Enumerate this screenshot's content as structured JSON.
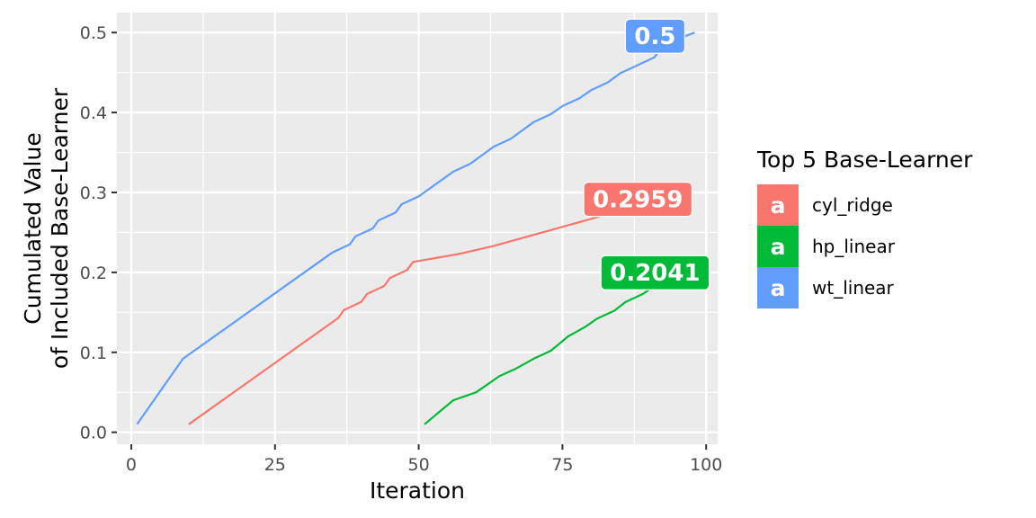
{
  "chart_data": {
    "type": "line",
    "xlabel": "Iteration",
    "ylabel_lines": [
      "Cumulated Value",
      "of Included Base-Learner"
    ],
    "xlim": [
      -2.5,
      102
    ],
    "ylim": [
      -0.015,
      0.525
    ],
    "x_ticks": [
      0,
      25,
      50,
      75,
      100
    ],
    "x_tick_labels": [
      "0",
      "25",
      "50",
      "75",
      "100"
    ],
    "y_ticks": [
      0.0,
      0.1,
      0.2,
      0.3,
      0.4,
      0.5
    ],
    "y_tick_labels": [
      "0.0",
      "0.1",
      "0.2",
      "0.3",
      "0.4",
      "0.5"
    ],
    "grid": true,
    "legend": {
      "title": "Top 5 Base-Learner",
      "position": "right",
      "key_text": "a",
      "items": [
        "cyl_ridge",
        "hp_linear",
        "wt_linear"
      ]
    },
    "series": [
      {
        "name": "cyl_ridge",
        "color": "#F8766D",
        "end_label": "0.2959",
        "points": [
          [
            10,
            0.01
          ],
          [
            36,
            0.143
          ],
          [
            37,
            0.153
          ],
          [
            40,
            0.163
          ],
          [
            41,
            0.173
          ],
          [
            44,
            0.183
          ],
          [
            45,
            0.193
          ],
          [
            48,
            0.203
          ],
          [
            49,
            0.213
          ],
          [
            57,
            0.223
          ],
          [
            63,
            0.233
          ],
          [
            68,
            0.243
          ],
          [
            73,
            0.253
          ],
          [
            78,
            0.263
          ],
          [
            83,
            0.273
          ],
          [
            88,
            0.283
          ],
          [
            95,
            0.2959
          ]
        ]
      },
      {
        "name": "hp_linear",
        "color": "#00BA38",
        "end_label": "0.2041",
        "points": [
          [
            51,
            0.01
          ],
          [
            56,
            0.04
          ],
          [
            60,
            0.05
          ],
          [
            64,
            0.07
          ],
          [
            67,
            0.08
          ],
          [
            70,
            0.092
          ],
          [
            73,
            0.102
          ],
          [
            76,
            0.12
          ],
          [
            79,
            0.132
          ],
          [
            81,
            0.142
          ],
          [
            84,
            0.152
          ],
          [
            86,
            0.163
          ],
          [
            89,
            0.173
          ],
          [
            91,
            0.183
          ],
          [
            95,
            0.193
          ],
          [
            98,
            0.2041
          ]
        ]
      },
      {
        "name": "wt_linear",
        "color": "#619CFF",
        "end_label": "0.5",
        "points": [
          [
            1,
            0.01
          ],
          [
            9,
            0.092
          ],
          [
            35,
            0.225
          ],
          [
            38,
            0.235
          ],
          [
            39,
            0.245
          ],
          [
            42,
            0.255
          ],
          [
            43,
            0.265
          ],
          [
            46,
            0.275
          ],
          [
            47,
            0.285
          ],
          [
            50,
            0.295
          ],
          [
            56,
            0.326
          ],
          [
            59,
            0.336
          ],
          [
            63,
            0.357
          ],
          [
            66,
            0.367
          ],
          [
            70,
            0.388
          ],
          [
            73,
            0.398
          ],
          [
            75,
            0.408
          ],
          [
            78,
            0.418
          ],
          [
            80,
            0.428
          ],
          [
            83,
            0.438
          ],
          [
            85,
            0.449
          ],
          [
            88,
            0.459
          ],
          [
            91,
            0.469
          ],
          [
            92,
            0.479
          ],
          [
            94,
            0.489
          ],
          [
            98,
            0.5
          ]
        ]
      }
    ]
  }
}
